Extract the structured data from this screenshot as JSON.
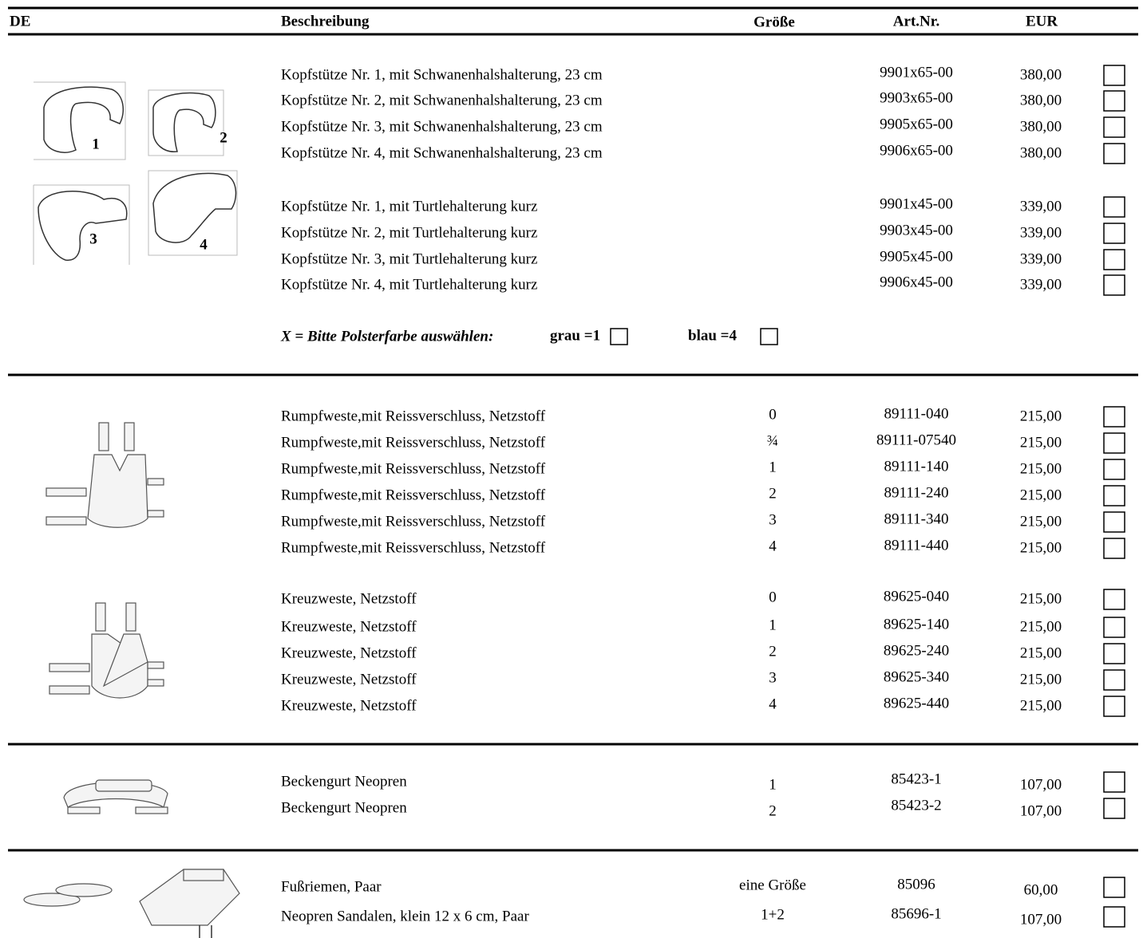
{
  "header": {
    "region": "DE",
    "description": "Beschreibung",
    "size": "Größe",
    "article": "Art.Nr.",
    "price": "EUR"
  },
  "groups": [
    {
      "rows": [
        {
          "description": "Kopfstütze Nr. 1, mit Schwanenhalshalterung, 23 cm",
          "article": "9901x65-00",
          "price": "380,00"
        },
        {
          "description": "Kopfstütze Nr. 2, mit Schwanenhalshalterung, 23 cm",
          "article": "9903x65-00",
          "price": "380,00"
        },
        {
          "description": "Kopfstütze Nr. 3, mit Schwanenhalshalterung, 23 cm",
          "article": "9905x65-00",
          "price": "380,00"
        },
        {
          "description": "Kopfstütze Nr. 4, mit Schwanenhalshalterung, 23 cm",
          "article": "9906x65-00",
          "price": "380,00"
        }
      ]
    },
    {
      "rows": [
        {
          "description": "Kopfstütze Nr. 1, mit Turtlehalterung kurz",
          "article": "9901x45-00",
          "price": "339,00"
        },
        {
          "description": "Kopfstütze Nr. 2, mit Turtlehalterung kurz",
          "article": "9903x45-00",
          "price": "339,00"
        },
        {
          "description": "Kopfstütze Nr. 3, mit Turtlehalterung kurz",
          "article": "9905x45-00",
          "price": "339,00"
        },
        {
          "description": "Kopfstütze Nr. 4, mit Turtlehalterung kurz",
          "article": "9906x45-00",
          "price": "339,00"
        }
      ]
    },
    {
      "rows": [
        {
          "description": "Rumpfweste,mit Reissverschluss, Netzstoff",
          "size": "0",
          "article": "89111-040",
          "price": "215,00"
        },
        {
          "description": "Rumpfweste,mit Reissverschluss, Netzstoff",
          "size": "¾",
          "article": "89111-07540",
          "price": "215,00"
        },
        {
          "description": "Rumpfweste,mit Reissverschluss, Netzstoff",
          "size": "1",
          "article": "89111-140",
          "price": "215,00"
        },
        {
          "description": "Rumpfweste,mit Reissverschluss, Netzstoff",
          "size": "2",
          "article": "89111-240",
          "price": "215,00"
        },
        {
          "description": "Rumpfweste,mit Reissverschluss, Netzstoff",
          "size": "3",
          "article": "89111-340",
          "price": "215,00"
        },
        {
          "description": "Rumpfweste,mit Reissverschluss, Netzstoff",
          "size": "4",
          "article": "89111-440",
          "price": "215,00"
        }
      ]
    },
    {
      "rows": [
        {
          "description": "Kreuzweste, Netzstoff",
          "size": "0",
          "article": "89625-040",
          "price": "215,00"
        },
        {
          "description": "Kreuzweste, Netzstoff",
          "size": "1",
          "article": "89625-140",
          "price": "215,00"
        },
        {
          "description": "Kreuzweste, Netzstoff",
          "size": "2",
          "article": "89625-240",
          "price": "215,00"
        },
        {
          "description": "Kreuzweste, Netzstoff",
          "size": "3",
          "article": "89625-340",
          "price": "215,00"
        },
        {
          "description": "Kreuzweste, Netzstoff",
          "size": "4",
          "article": "89625-440",
          "price": "215,00"
        }
      ]
    },
    {
      "rows": [
        {
          "description": "Beckengurt Neopren",
          "size": "1",
          "article": "85423-1",
          "price": "107,00"
        },
        {
          "description": "Beckengurt Neopren",
          "size": "2",
          "article": "85423-2",
          "price": "107,00"
        }
      ]
    },
    {
      "rows": [
        {
          "description": "Fußriemen, Paar",
          "size": "eine Größe",
          "article": "85096",
          "price": "60,00"
        },
        {
          "description": "Neopren Sandalen, klein 12 x 6 cm, Paar",
          "size": "1+2",
          "article": "85696-1",
          "price": "107,00"
        }
      ]
    }
  ],
  "color_note": {
    "label": "X = Bitte Polsterfarbe auswählen:",
    "options": [
      "grau =1",
      "blau =4"
    ]
  },
  "image_labels": [
    "1",
    "2",
    "3",
    "4"
  ]
}
